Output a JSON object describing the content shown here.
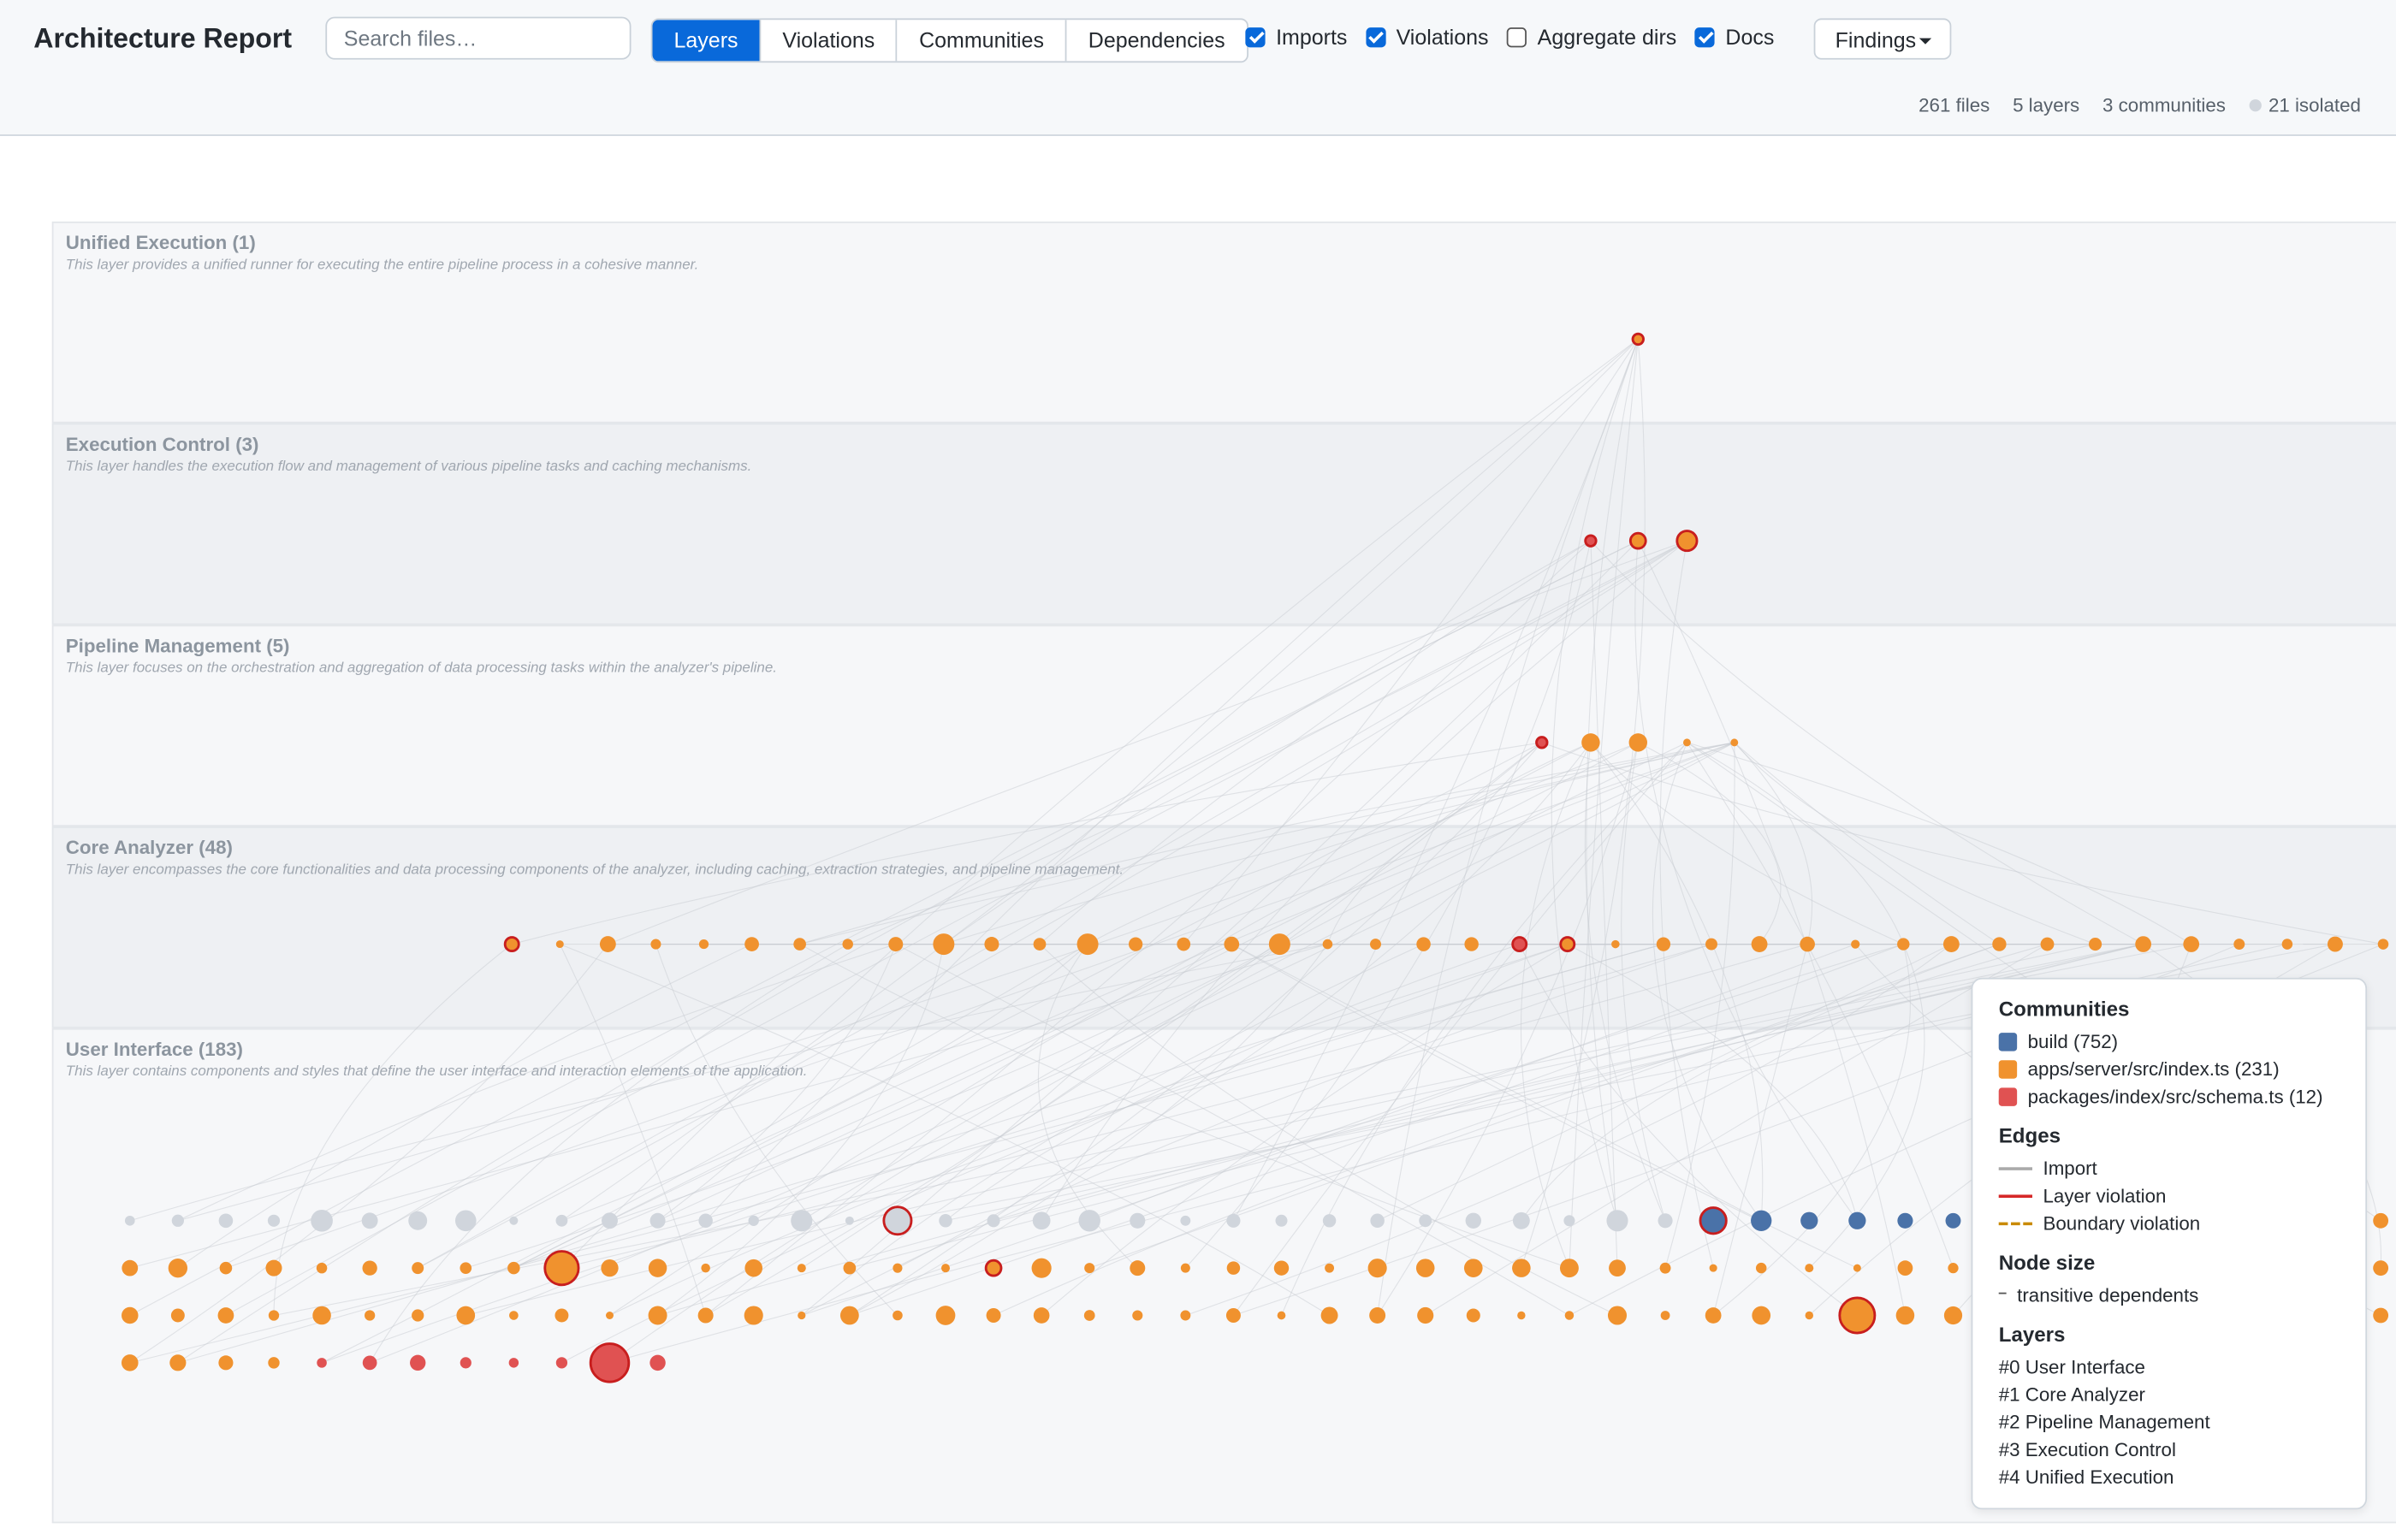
{
  "header": {
    "title": "Architecture Report",
    "search_placeholder": "Search files…",
    "tabs": [
      "Layers",
      "Violations",
      "Communities",
      "Dependencies"
    ],
    "active_tab": 0,
    "toggles": [
      {
        "label": "Imports",
        "checked": true
      },
      {
        "label": "Violations",
        "checked": true
      },
      {
        "label": "Aggregate dirs",
        "checked": false
      },
      {
        "label": "Docs",
        "checked": true
      }
    ],
    "findings": "Findings"
  },
  "stats": [
    "261 files",
    "5 layers",
    "3 communities",
    "21 isolated"
  ],
  "layers": [
    {
      "name": "Unified Execution (1)",
      "description": "This layer provides a unified runner for executing the entire pipeline process in a cohesive manner."
    },
    {
      "name": "Execution Control (3)",
      "description": "This layer handles the execution flow and management of various pipeline tasks and caching mechanisms."
    },
    {
      "name": "Pipeline Management (5)",
      "description": "This layer focuses on the orchestration and aggregation of data processing tasks within the analyzer's pipeline."
    },
    {
      "name": "Core Analyzer (48)",
      "description": "This layer encompasses the core functionalities and data processing components of the analyzer, including caching, extraction strategies, and pipeline management."
    },
    {
      "name": "User Interface (183)",
      "description": "This layer contains components and styles that define the user interface and interaction elements of the application."
    }
  ],
  "legend": {
    "communities_title": "Communities",
    "communities": [
      {
        "label": "build (752)",
        "color": "#4a72a8"
      },
      {
        "label": "apps/server/src/index.ts (231)",
        "color": "#f0922e"
      },
      {
        "label": "packages/index/src/schema.ts (12)",
        "color": "#e05252"
      }
    ],
    "edges_title": "Edges",
    "edges": [
      "Import",
      "Layer violation",
      "Boundary violation"
    ],
    "node_size_title": "Node size",
    "node_size": "transitive dependents",
    "layers_title": "Layers",
    "layers": [
      "#0 User Interface",
      "#1 Core Analyzer",
      "#2 Pipeline Management",
      "#3 Execution Control",
      "#4 Unified Execution"
    ]
  }
}
